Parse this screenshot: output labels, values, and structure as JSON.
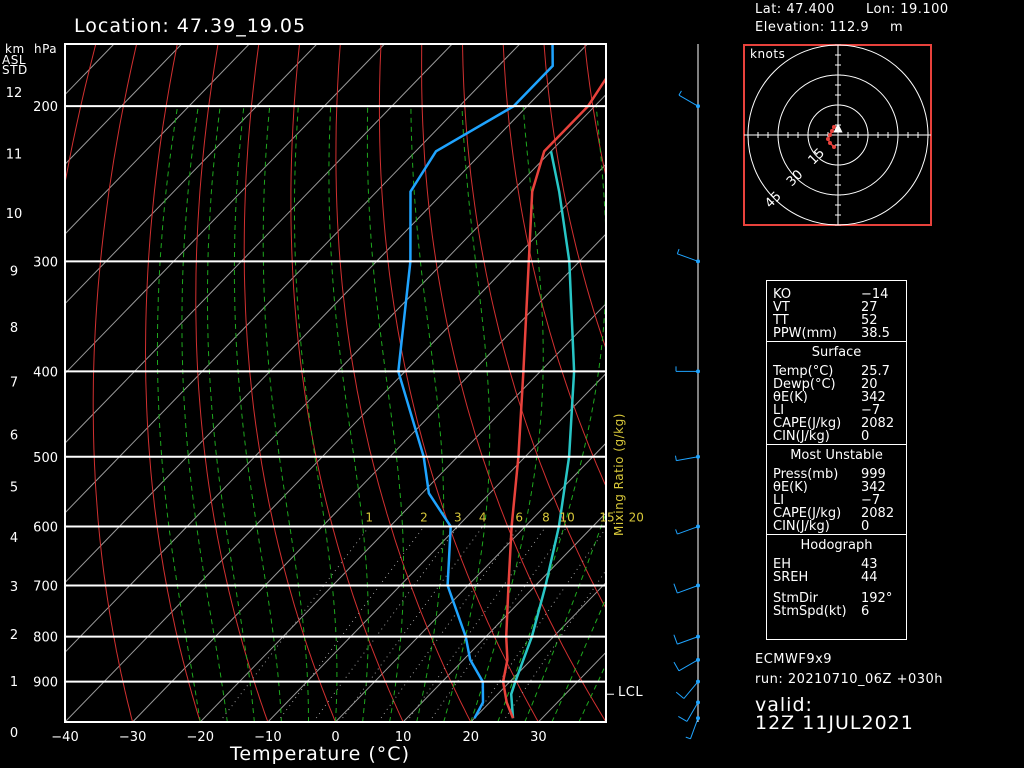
{
  "title": "Location: 47.39_19.05",
  "info": {
    "lat_label": "Lat: 47.400",
    "lon_label": "Lon: 19.100",
    "elev_label": "Elevation: 112.9",
    "elev_unit": "m"
  },
  "axis": {
    "km_label": "km",
    "hpa_label": "hPa",
    "asl_label": "ASL",
    "std_label": "STD",
    "xlabel": "Temperature (°C)",
    "mixing_label": "Mixing Ratio (g/kg)",
    "lcl_label": "LCL"
  },
  "model": {
    "name": "ECMWF9x9",
    "run": "run:  20210710_06Z +030h",
    "valid_label": "valid:",
    "valid_time": "12Z  11JUL2021"
  },
  "hodograph": {
    "units": "knots",
    "ring_labels": [
      "15",
      "30",
      "45"
    ]
  },
  "indices": {
    "top": [
      {
        "k": "KO",
        "v": "−14"
      },
      {
        "k": "VT",
        "v": "27"
      },
      {
        "k": "TT",
        "v": "52"
      },
      {
        "k": "PPW(mm)",
        "v": "38.5"
      }
    ],
    "surface_header": "Surface",
    "surface": [
      {
        "k": "Temp(°C)",
        "v": "25.7"
      },
      {
        "k": "Dewp(°C)",
        "v": "20"
      },
      {
        "k": "θE(K)",
        "v": "342"
      },
      {
        "k": "LI",
        "v": "−7"
      },
      {
        "k": "CAPE(J/kg)",
        "v": "2082"
      },
      {
        "k": "CIN(J/kg)",
        "v": "0"
      }
    ],
    "mu_header": "Most Unstable",
    "mu": [
      {
        "k": "Press(mb)",
        "v": "999"
      },
      {
        "k": "θE(K)",
        "v": "342"
      },
      {
        "k": "LI",
        "v": "−7"
      },
      {
        "k": "CAPE(J/kg)",
        "v": "2082"
      },
      {
        "k": "CIN(J/kg)",
        "v": "0"
      }
    ],
    "hodo_header": "Hodograph",
    "hodo": [
      {
        "k": "EH",
        "v": "43"
      },
      {
        "k": "SREH",
        "v": "44"
      },
      {
        "k": "StmDir",
        "v": "192°"
      },
      {
        "k": "StmSpd(kt)",
        "v": "6"
      }
    ]
  },
  "colors": {
    "temperature": "#e8423c",
    "dewpoint": "#1fa4ff",
    "parcel": "#28c6c6",
    "isotherm": "#9a9a9a",
    "dry_adiabat": "#d23030",
    "moist_adiabat": "#1ea81e",
    "mixing": "#d8c83a",
    "frame": "#ffffff",
    "hodo_frame": "#e8423c"
  },
  "chart_data": {
    "type": "skew-t",
    "xlim": [
      -40,
      40
    ],
    "x_ticks": [
      -40,
      -30,
      -20,
      -10,
      0,
      10,
      20,
      30
    ],
    "pressure_levels": [
      200,
      300,
      400,
      500,
      600,
      700,
      800,
      900
    ],
    "km_ticks": [
      0,
      1,
      2,
      3,
      4,
      5,
      6,
      7,
      8,
      9,
      10,
      11,
      12
    ],
    "mixing_ratios": [
      "1",
      "2",
      "3",
      "4",
      "6",
      "8",
      "10",
      "15",
      "20"
    ],
    "temperature_profile": [
      {
        "p": 990,
        "t": 25.7
      },
      {
        "p": 950,
        "t": 22.5
      },
      {
        "p": 900,
        "t": 19.0
      },
      {
        "p": 850,
        "t": 16.5
      },
      {
        "p": 800,
        "t": 13.0
      },
      {
        "p": 700,
        "t": 6.0
      },
      {
        "p": 600,
        "t": -2.0
      },
      {
        "p": 500,
        "t": -11.0
      },
      {
        "p": 400,
        "t": -22.5
      },
      {
        "p": 300,
        "t": -37.5
      },
      {
        "p": 250,
        "t": -47.0
      },
      {
        "p": 225,
        "t": -51.0
      },
      {
        "p": 200,
        "t": -51.0
      },
      {
        "p": 160,
        "t": -55.0
      },
      {
        "p": 130,
        "t": -58.0
      }
    ],
    "dewpoint_profile": [
      {
        "p": 990,
        "t": 20.0
      },
      {
        "p": 950,
        "t": 19.0
      },
      {
        "p": 900,
        "t": 16.0
      },
      {
        "p": 850,
        "t": 11.0
      },
      {
        "p": 800,
        "t": 7.0
      },
      {
        "p": 700,
        "t": -3.0
      },
      {
        "p": 600,
        "t": -11.0
      },
      {
        "p": 550,
        "t": -19.0
      },
      {
        "p": 500,
        "t": -25.0
      },
      {
        "p": 400,
        "t": -41.0
      },
      {
        "p": 300,
        "t": -55.0
      },
      {
        "p": 250,
        "t": -65.0
      },
      {
        "p": 225,
        "t": -67.0
      },
      {
        "p": 200,
        "t": -62.0
      },
      {
        "p": 180,
        "t": -62.0
      },
      {
        "p": 130,
        "t": -80.0
      }
    ],
    "parcel_profile": [
      {
        "p": 990,
        "t": 25.7
      },
      {
        "p": 930,
        "t": 22.0
      },
      {
        "p": 900,
        "t": 20.8
      },
      {
        "p": 800,
        "t": 16.8
      },
      {
        "p": 700,
        "t": 11.5
      },
      {
        "p": 600,
        "t": 5.0
      },
      {
        "p": 500,
        "t": -3.5
      },
      {
        "p": 400,
        "t": -15.0
      },
      {
        "p": 300,
        "t": -31.5
      },
      {
        "p": 250,
        "t": -43.0
      },
      {
        "p": 225,
        "t": -50.0
      }
    ],
    "lcl_p": 930,
    "wind_barbs_kt": [
      {
        "p": 990,
        "spd": 5,
        "dir": 200
      },
      {
        "p": 950,
        "spd": 10,
        "dir": 210
      },
      {
        "p": 900,
        "spd": 10,
        "dir": 220
      },
      {
        "p": 850,
        "spd": 10,
        "dir": 240
      },
      {
        "p": 800,
        "spd": 10,
        "dir": 250
      },
      {
        "p": 700,
        "spd": 10,
        "dir": 250
      },
      {
        "p": 600,
        "spd": 5,
        "dir": 250
      },
      {
        "p": 500,
        "spd": 5,
        "dir": 260
      },
      {
        "p": 400,
        "spd": 5,
        "dir": 270
      },
      {
        "p": 300,
        "spd": 5,
        "dir": 290
      },
      {
        "p": 200,
        "spd": 5,
        "dir": 300
      }
    ],
    "hodograph_points_kt": [
      {
        "u": -2,
        "v": -6
      },
      {
        "u": -4,
        "v": -4
      },
      {
        "u": -5,
        "v": -2
      },
      {
        "u": -4,
        "v": 0
      },
      {
        "u": -3,
        "v": 2
      },
      {
        "u": -2,
        "v": 4
      }
    ]
  }
}
